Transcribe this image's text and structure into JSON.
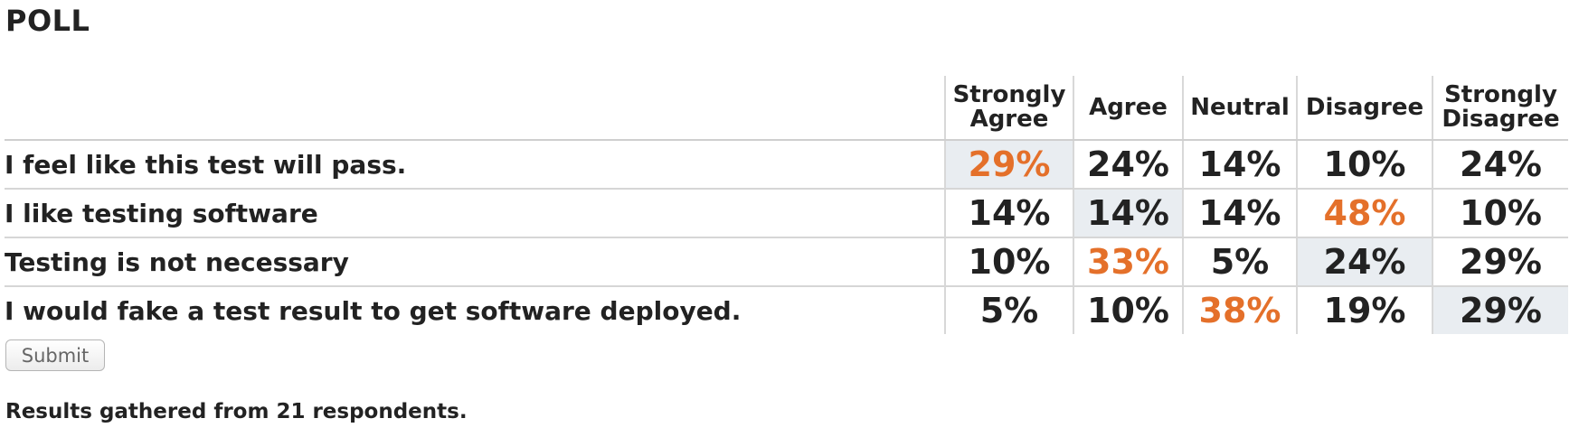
{
  "poll": {
    "title": "POLL",
    "columns": [
      {
        "line1": "Strongly",
        "line2": "Agree"
      },
      {
        "line1": "Agree",
        "line2": ""
      },
      {
        "line1": "Neutral",
        "line2": ""
      },
      {
        "line1": "Disagree",
        "line2": ""
      },
      {
        "line1": "Strongly",
        "line2": "Disagree"
      }
    ],
    "rows": [
      {
        "question": "I feel like this test will pass.",
        "values": [
          "29%",
          "24%",
          "14%",
          "10%",
          "24%"
        ],
        "top_index": 0,
        "selected_index": 0
      },
      {
        "question": "I like testing software",
        "values": [
          "14%",
          "14%",
          "14%",
          "48%",
          "10%"
        ],
        "top_index": 3,
        "selected_index": 1
      },
      {
        "question": "Testing is not necessary",
        "values": [
          "10%",
          "33%",
          "5%",
          "24%",
          "29%"
        ],
        "top_index": 1,
        "selected_index": 3
      },
      {
        "question": "I would fake a test result to get software deployed.",
        "values": [
          "5%",
          "10%",
          "38%",
          "19%",
          "29%"
        ],
        "top_index": 2,
        "selected_index": 4
      }
    ],
    "submit_label": "Submit",
    "results_text": "Results gathered from 21 respondents."
  },
  "colors": {
    "top_result": "#e4702a",
    "selected_cell_bg": "#e9edf1",
    "text": "#222222"
  }
}
